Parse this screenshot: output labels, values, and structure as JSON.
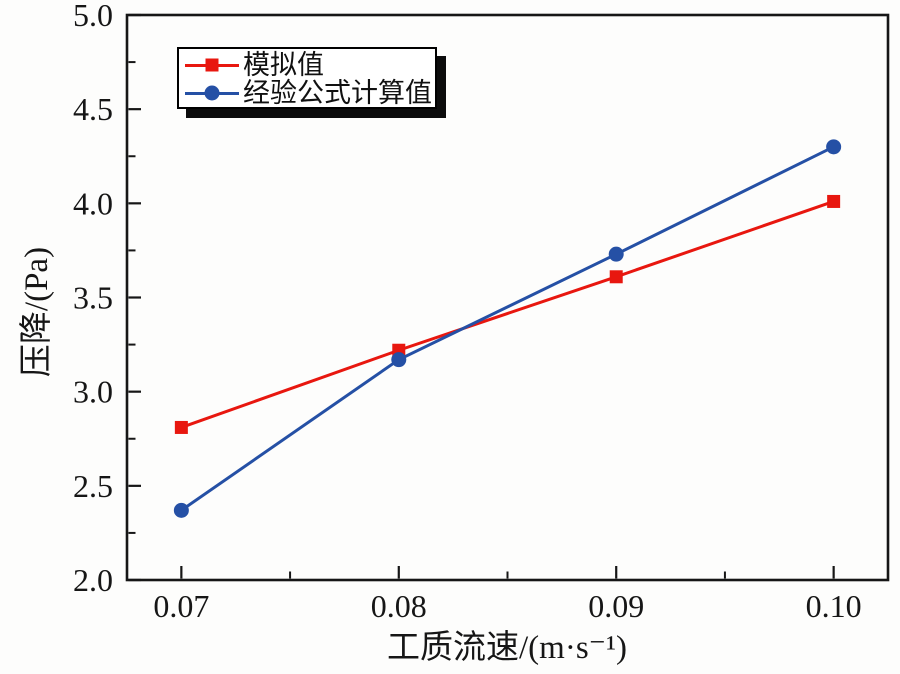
{
  "figure": {
    "background": "#fdfdfc",
    "axis_color": "#161616"
  },
  "chart_data": {
    "type": "line",
    "title": "",
    "x": [
      0.07,
      0.08,
      0.09,
      0.1
    ],
    "series": [
      {
        "name": "模拟值",
        "color": "#e8170f",
        "marker": "square",
        "values": [
          2.81,
          3.22,
          3.61,
          4.01
        ]
      },
      {
        "name": "经验公式计算值",
        "color": "#2550a5",
        "marker": "circle",
        "values": [
          2.37,
          3.17,
          3.73,
          4.3
        ]
      }
    ],
    "xlabel": "工质流速/(m·s⁻¹)",
    "ylabel": "压降/(Pa)",
    "xlim": [
      0.0675,
      0.1025
    ],
    "ylim": [
      2.0,
      5.0
    ],
    "x_ticks": {
      "values": [
        0.07,
        0.08,
        0.09,
        0.1
      ],
      "labels": [
        "0.07",
        "0.08",
        "0.09",
        "0.10"
      ],
      "minor": [
        0.075,
        0.085,
        0.095
      ]
    },
    "y_ticks": {
      "values": [
        2.0,
        2.5,
        3.0,
        3.5,
        4.0,
        4.5,
        5.0
      ],
      "labels": [
        "2.0",
        "2.5",
        "3.0",
        "3.5",
        "4.0",
        "4.5",
        "5.0"
      ],
      "minor": [
        2.25,
        2.75,
        3.25,
        3.75,
        4.25,
        4.75
      ]
    },
    "grid": false,
    "legend_position": "top-left",
    "frame": true
  }
}
